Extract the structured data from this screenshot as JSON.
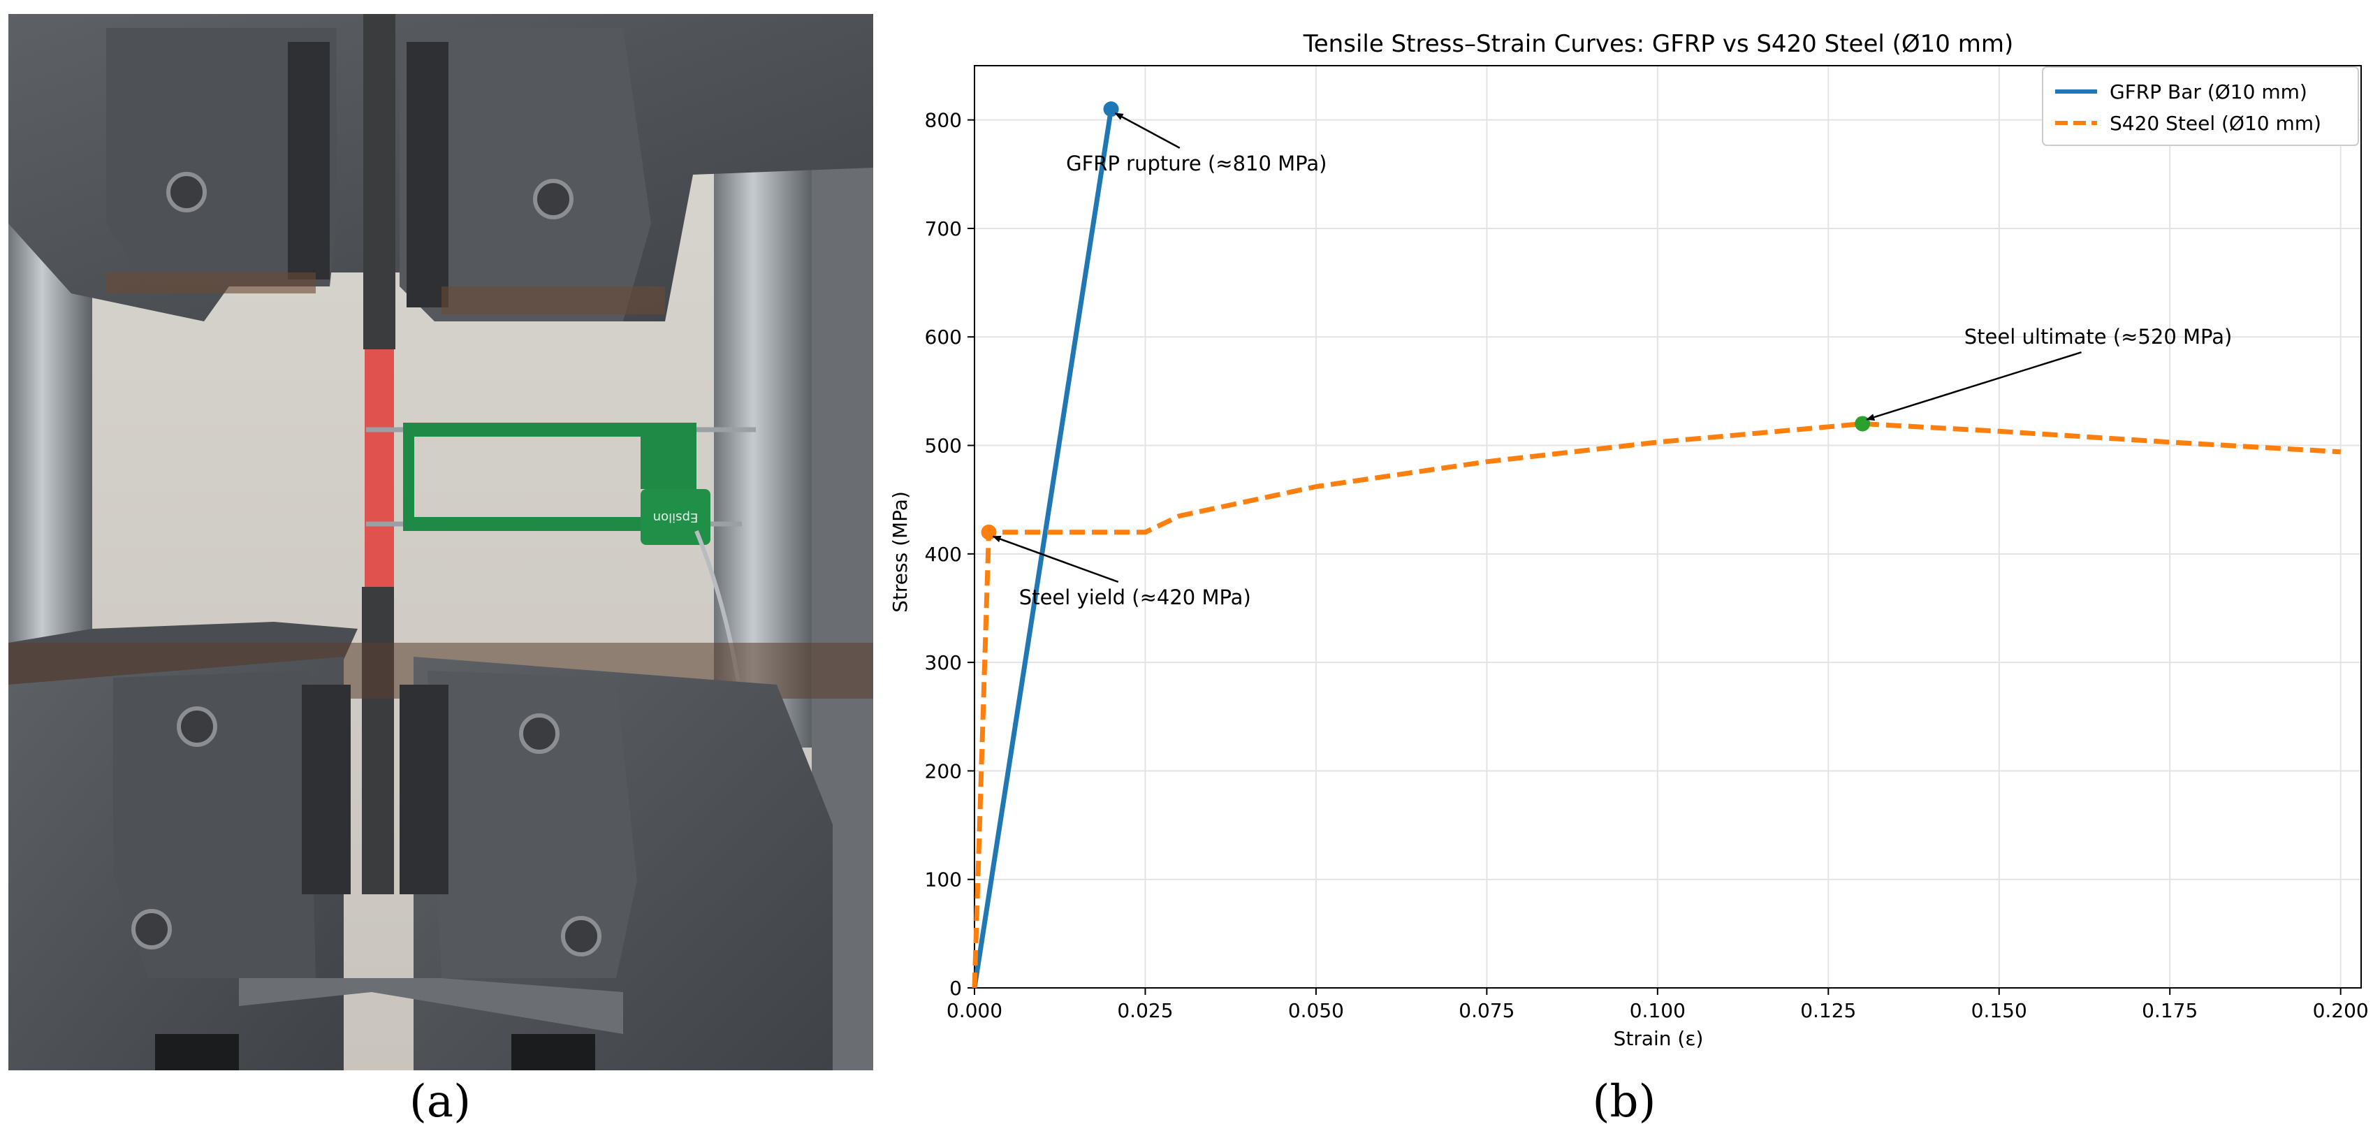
{
  "figure": {
    "panel_a_label": "(a)",
    "panel_b_label": "(b)",
    "photo_description_icon": "tensile-test-photo",
    "extensometer_brand": "Epsilon"
  },
  "chart_data": {
    "type": "line",
    "title": "Tensile Stress–Strain Curves: GFRP vs S420 Steel (Ø10 mm)",
    "xlabel": "Strain (ε)",
    "ylabel": "Stress (MPa)",
    "xlim": [
      0,
      0.203
    ],
    "ylim": [
      0,
      850
    ],
    "xticks": [
      0.0,
      0.025,
      0.05,
      0.075,
      0.1,
      0.125,
      0.15,
      0.175,
      0.2
    ],
    "xtick_labels": [
      "0.000",
      "0.025",
      "0.050",
      "0.075",
      "0.100",
      "0.125",
      "0.150",
      "0.175",
      "0.200"
    ],
    "yticks": [
      0,
      100,
      200,
      300,
      400,
      500,
      600,
      700,
      800
    ],
    "ytick_labels": [
      "0",
      "100",
      "200",
      "300",
      "400",
      "500",
      "600",
      "700",
      "800"
    ],
    "grid": true,
    "legend_position": "top-right",
    "series": [
      {
        "name": "GFRP Bar (Ø10 mm)",
        "color": "#1f77b4",
        "style": "solid",
        "points": [
          [
            0.0,
            0
          ],
          [
            0.02,
            810
          ]
        ]
      },
      {
        "name": "S420 Steel (Ø10 mm)",
        "color": "#ff7f0e",
        "style": "dashed",
        "points": [
          [
            0.0,
            0
          ],
          [
            0.0021,
            420
          ],
          [
            0.025,
            420
          ],
          [
            0.03,
            435
          ],
          [
            0.05,
            462
          ],
          [
            0.075,
            485
          ],
          [
            0.1,
            503
          ],
          [
            0.13,
            520
          ],
          [
            0.15,
            513
          ],
          [
            0.175,
            503
          ],
          [
            0.2,
            494
          ]
        ]
      }
    ],
    "markers": [
      {
        "x": 0.02,
        "y": 810,
        "color": "#1f77b4"
      },
      {
        "x": 0.0021,
        "y": 420,
        "color": "#ff7f0e"
      },
      {
        "x": 0.13,
        "y": 520,
        "color": "#2ca02c"
      }
    ],
    "annotations": [
      {
        "text": "GFRP rupture (≈810 MPa)",
        "x": 0.02,
        "y": 810,
        "text_x": 0.0325,
        "text_y": 760
      },
      {
        "text": "Steel yield (≈420 MPa)",
        "x": 0.0021,
        "y": 420,
        "text_x": 0.0235,
        "text_y": 360
      },
      {
        "text": "Steel ultimate (≈520 MPa)",
        "x": 0.13,
        "y": 520,
        "text_x": 0.1645,
        "text_y": 600
      }
    ]
  }
}
